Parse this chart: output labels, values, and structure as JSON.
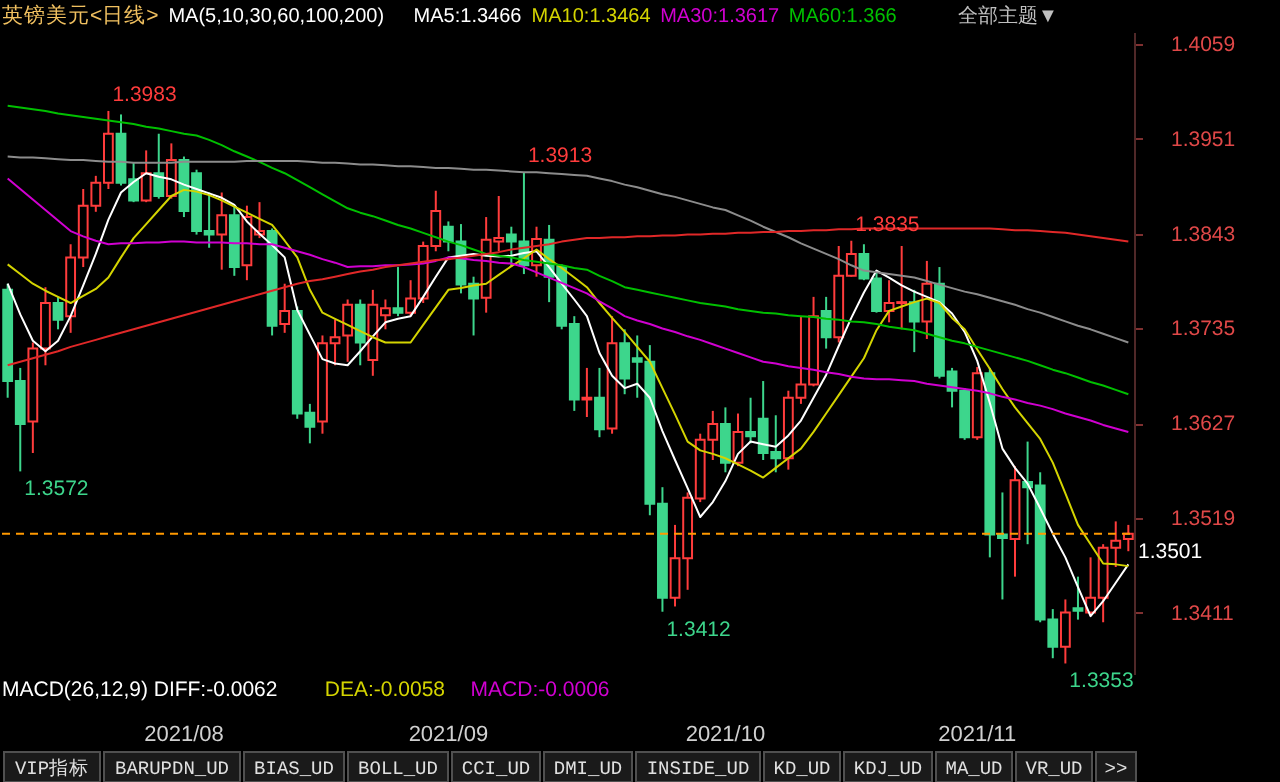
{
  "chart_data": {
    "type": "candlestick",
    "title": "英镑美元<日线>",
    "legend_title": "MA(5,10,30,60,100,200)",
    "legend": "top",
    "grid": false,
    "categories": [
      null,
      null,
      null,
      null,
      null,
      null,
      null,
      null,
      null,
      null,
      null,
      null,
      null,
      null,
      "2021/08",
      null,
      null,
      null,
      null,
      null,
      null,
      null,
      null,
      null,
      null,
      null,
      null,
      null,
      null,
      null,
      null,
      null,
      null,
      null,
      null,
      "2021/09",
      null,
      null,
      null,
      null,
      null,
      null,
      null,
      null,
      null,
      null,
      null,
      null,
      null,
      null,
      null,
      null,
      null,
      null,
      null,
      null,
      null,
      "2021/10",
      null,
      null,
      null,
      null,
      null,
      null,
      null,
      null,
      null,
      null,
      null,
      null,
      null,
      null,
      null,
      null,
      null,
      null,
      null,
      "2021/11",
      null,
      null,
      null,
      null,
      null,
      null,
      null,
      null,
      null,
      null,
      null,
      null
    ],
    "ohlc": [
      [
        1.3779,
        1.3786,
        1.3656,
        1.3675
      ],
      [
        1.3675,
        1.369,
        1.3572,
        1.3626
      ],
      [
        1.3629,
        1.3719,
        1.3593,
        1.3712
      ],
      [
        1.3712,
        1.3782,
        1.3693,
        1.3764
      ],
      [
        1.3764,
        1.3771,
        1.3734,
        1.3745
      ],
      [
        1.3749,
        1.3831,
        1.373,
        1.3816
      ],
      [
        1.3816,
        1.3894,
        1.3805,
        1.3875
      ],
      [
        1.3875,
        1.3909,
        1.3868,
        1.3901
      ],
      [
        1.3901,
        1.3983,
        1.3894,
        1.3957
      ],
      [
        1.3957,
        1.3979,
        1.3898,
        1.3901
      ],
      [
        1.3905,
        1.3924,
        1.3879,
        1.3881
      ],
      [
        1.3881,
        1.3938,
        1.3879,
        1.3912
      ],
      [
        1.3912,
        1.3957,
        1.3883,
        1.3886
      ],
      [
        1.3886,
        1.3946,
        1.3883,
        1.3927
      ],
      [
        1.3927,
        1.3931,
        1.3862,
        1.3869
      ],
      [
        1.3912,
        1.3916,
        1.3842,
        1.3846
      ],
      [
        1.3846,
        1.389,
        1.3827,
        1.3842
      ],
      [
        1.3842,
        1.389,
        1.3802,
        1.3864
      ],
      [
        1.3864,
        1.3875,
        1.3795,
        1.3805
      ],
      [
        1.3807,
        1.3875,
        1.379,
        1.3862
      ],
      [
        1.3842,
        1.3879,
        1.3838,
        1.3846
      ],
      [
        1.3846,
        1.3849,
        1.3727,
        1.3738
      ],
      [
        1.374,
        1.3786,
        1.373,
        1.3755
      ],
      [
        1.3755,
        1.376,
        1.3632,
        1.3638
      ],
      [
        1.3639,
        1.3649,
        1.3604,
        1.3623
      ],
      [
        1.3629,
        1.3727,
        1.3615,
        1.3718
      ],
      [
        1.3718,
        1.3745,
        1.3693,
        1.3725
      ],
      [
        1.3727,
        1.3768,
        1.3697,
        1.3762
      ],
      [
        1.3762,
        1.3768,
        1.3693,
        1.3719
      ],
      [
        1.3699,
        1.3779,
        1.3681,
        1.3762
      ],
      [
        1.375,
        1.3768,
        1.3734,
        1.3758
      ],
      [
        1.3758,
        1.3805,
        1.3749,
        1.3753
      ],
      [
        1.3753,
        1.379,
        1.3749,
        1.3769
      ],
      [
        1.3769,
        1.3834,
        1.3764,
        1.3829
      ],
      [
        1.3829,
        1.3892,
        1.3823,
        1.3869
      ],
      [
        1.3851,
        1.3857,
        1.3823,
        1.3834
      ],
      [
        1.3834,
        1.3854,
        1.3775,
        1.3785
      ],
      [
        1.3786,
        1.3794,
        1.3727,
        1.3769
      ],
      [
        1.377,
        1.3862,
        1.3753,
        1.3836
      ],
      [
        1.3834,
        1.3886,
        1.3823,
        1.3838
      ],
      [
        1.3842,
        1.3851,
        1.3805,
        1.3834
      ],
      [
        1.3834,
        1.3913,
        1.3797,
        1.3807
      ],
      [
        1.3807,
        1.3851,
        1.3794,
        1.3837
      ],
      [
        1.3836,
        1.3853,
        1.3765,
        1.3794
      ],
      [
        1.3805,
        1.3808,
        1.3734,
        1.3738
      ],
      [
        1.374,
        1.3749,
        1.3641,
        1.3654
      ],
      [
        1.3654,
        1.369,
        1.3634,
        1.3656
      ],
      [
        1.3656,
        1.369,
        1.3611,
        1.362
      ],
      [
        1.3621,
        1.3749,
        1.3615,
        1.3718
      ],
      [
        1.3718,
        1.3734,
        1.366,
        1.3678
      ],
      [
        1.3701,
        1.3727,
        1.3656,
        1.3697
      ],
      [
        1.3697,
        1.3716,
        1.3522,
        1.3535
      ],
      [
        1.3535,
        1.3554,
        1.3412,
        1.3428
      ],
      [
        1.3428,
        1.3511,
        1.3418,
        1.3473
      ],
      [
        1.3473,
        1.3548,
        1.3437,
        1.3542
      ],
      [
        1.3541,
        1.3615,
        1.3537,
        1.3608
      ],
      [
        1.3608,
        1.3641,
        1.3585,
        1.3626
      ],
      [
        1.3626,
        1.3645,
        1.3571,
        1.3582
      ],
      [
        1.3582,
        1.3638,
        1.3578,
        1.3617
      ],
      [
        1.3617,
        1.3656,
        1.3604,
        1.3612
      ],
      [
        1.3632,
        1.3675,
        1.3585,
        1.3593
      ],
      [
        1.3594,
        1.3636,
        1.3571,
        1.3587
      ],
      [
        1.3587,
        1.3664,
        1.3574,
        1.3656
      ],
      [
        1.3656,
        1.3749,
        1.3649,
        1.3671
      ],
      [
        1.3671,
        1.3771,
        1.3669,
        1.3749
      ],
      [
        1.3755,
        1.3771,
        1.3712,
        1.3725
      ],
      [
        1.3725,
        1.3829,
        1.3719,
        1.3795
      ],
      [
        1.3795,
        1.3835,
        1.3794,
        1.382
      ],
      [
        1.382,
        1.3831,
        1.379,
        1.3792
      ],
      [
        1.3792,
        1.3801,
        1.3753,
        1.3755
      ],
      [
        1.3755,
        1.379,
        1.3742,
        1.3764
      ],
      [
        1.3764,
        1.3829,
        1.3734,
        1.3765
      ],
      [
        1.3765,
        1.3779,
        1.3708,
        1.3743
      ],
      [
        1.3743,
        1.3812,
        1.3723,
        1.3786
      ],
      [
        1.3786,
        1.3805,
        1.3678,
        1.3681
      ],
      [
        1.3686,
        1.369,
        1.3645,
        1.3664
      ],
      [
        1.3664,
        1.3667,
        1.3608,
        1.3611
      ],
      [
        1.3611,
        1.3691,
        1.3608,
        1.3684
      ],
      [
        1.3684,
        1.369,
        1.3474,
        1.35
      ],
      [
        1.35,
        1.3548,
        1.3426,
        1.3496
      ],
      [
        1.3495,
        1.3578,
        1.3452,
        1.3562
      ],
      [
        1.356,
        1.3606,
        1.3489,
        1.3554
      ],
      [
        1.3556,
        1.3571,
        1.34,
        1.3403
      ],
      [
        1.3403,
        1.3415,
        1.3359,
        1.3372
      ],
      [
        1.3372,
        1.3426,
        1.3353,
        1.3411
      ],
      [
        1.3416,
        1.3452,
        1.3403,
        1.3413
      ],
      [
        1.3411,
        1.3474,
        1.3407,
        1.3428
      ],
      [
        1.3428,
        1.3489,
        1.34,
        1.3485
      ],
      [
        1.3485,
        1.3515,
        1.3463,
        1.3493
      ],
      [
        1.3495,
        1.3511,
        1.3481,
        1.3501
      ]
    ],
    "colors": [
      "#3dd68c",
      "#3dd68c",
      "#ff3c3c",
      "#ff3c3c",
      "#3dd68c",
      "#ff3c3c",
      "#ff3c3c",
      "#ff3c3c",
      "#ff3c3c",
      "#3dd68c",
      "#3dd68c",
      "#ff3c3c",
      "#3dd68c",
      "#ff3c3c",
      "#3dd68c",
      "#3dd68c",
      "#3dd68c",
      "#ff3c3c",
      "#3dd68c",
      "#ff3c3c",
      "#ff3c3c",
      "#3dd68c",
      "#ff3c3c",
      "#3dd68c",
      "#3dd68c",
      "#ff3c3c",
      "#ff3c3c",
      "#ff3c3c",
      "#3dd68c",
      "#ff3c3c",
      "#ff3c3c",
      "#3dd68c",
      "#ff3c3c",
      "#ff3c3c",
      "#ff3c3c",
      "#3dd68c",
      "#3dd68c",
      "#3dd68c",
      "#ff3c3c",
      "#ff3c3c",
      "#3dd68c",
      "#3dd68c",
      "#ff3c3c",
      "#3dd68c",
      "#3dd68c",
      "#3dd68c",
      "#ff3c3c",
      "#3dd68c",
      "#ff3c3c",
      "#3dd68c",
      "#3dd68c",
      "#3dd68c",
      "#3dd68c",
      "#ff3c3c",
      "#ff3c3c",
      "#ff3c3c",
      "#ff3c3c",
      "#3dd68c",
      "#ff3c3c",
      "#3dd68c",
      "#3dd68c",
      "#3dd68c",
      "#ff3c3c",
      "#ff3c3c",
      "#ff3c3c",
      "#3dd68c",
      "#ff3c3c",
      "#ff3c3c",
      "#3dd68c",
      "#3dd68c",
      "#ff3c3c",
      "#ff3c3c",
      "#3dd68c",
      "#ff3c3c",
      "#3dd68c",
      "#3dd68c",
      "#3dd68c",
      "#ff3c3c",
      "#3dd68c",
      "#3dd68c",
      "#ff3c3c",
      "#3dd68c",
      "#3dd68c",
      "#3dd68c",
      "#ff3c3c",
      "#3dd68c",
      "#ff3c3c",
      "#ff3c3c",
      "#ff3c3c",
      "#ff3c3c"
    ],
    "series": [
      {
        "name": "MA5:1.3466",
        "type": "line",
        "color": "#ffffff",
        "values": [
          1.3786,
          1.3751,
          1.3721,
          1.3709,
          1.3721,
          1.3749,
          1.3784,
          1.382,
          1.3859,
          1.389,
          1.3902,
          1.3912,
          1.3908,
          1.3905,
          1.3899,
          1.3894,
          1.3889,
          1.3884,
          1.3876,
          1.3857,
          1.3843,
          1.383,
          1.3816,
          1.3756,
          1.3728,
          1.37,
          1.3695,
          1.3693,
          1.3709,
          1.3726,
          1.3742,
          1.3746,
          1.3749,
          1.3771,
          1.3794,
          1.3816,
          1.3818,
          1.382,
          1.3818,
          1.3817,
          1.3818,
          1.3821,
          1.3823,
          1.3805,
          1.3786,
          1.3768,
          1.3749,
          1.3707,
          1.3681,
          1.3667,
          1.3672,
          1.3656,
          1.3618,
          1.3585,
          1.3553,
          1.352,
          1.3537,
          1.3561,
          1.3592,
          1.3606,
          1.3603,
          1.36,
          1.3613,
          1.363,
          1.3656,
          1.3682,
          1.3715,
          1.3747,
          1.3776,
          1.3801,
          1.3793,
          1.3784,
          1.3777,
          1.3771,
          1.3765,
          1.3752,
          1.3731,
          1.3698,
          1.365,
          1.3598,
          1.3576,
          1.3558,
          1.353,
          1.3501,
          1.3474,
          1.344,
          1.3407,
          1.3424,
          1.3445,
          1.3466
        ]
      },
      {
        "name": "MA10:1.3464",
        "type": "line",
        "color": "#d4d400",
        "values": [
          1.3808,
          1.3797,
          1.3786,
          1.3778,
          1.3771,
          1.3764,
          1.3772,
          1.378,
          1.3793,
          1.3816,
          1.3838,
          1.3854,
          1.387,
          1.3886,
          1.3893,
          1.3891,
          1.3887,
          1.3881,
          1.3874,
          1.3867,
          1.386,
          1.3853,
          1.3835,
          1.3816,
          1.3779,
          1.3753,
          1.3746,
          1.3739,
          1.3732,
          1.3725,
          1.3719,
          1.3719,
          1.3719,
          1.3739,
          1.3759,
          1.3779,
          1.3781,
          1.3784,
          1.3786,
          1.3796,
          1.3806,
          1.3815,
          1.3825,
          1.3814,
          1.3804,
          1.3793,
          1.3782,
          1.3764,
          1.3747,
          1.3731,
          1.3714,
          1.3697,
          1.3667,
          1.3637,
          1.3606,
          1.3596,
          1.3592,
          1.3587,
          1.358,
          1.3573,
          1.3565,
          1.3576,
          1.3587,
          1.3598,
          1.3617,
          1.3638,
          1.3659,
          1.368,
          1.3701,
          1.3733,
          1.3755,
          1.376,
          1.3765,
          1.3769,
          1.3764,
          1.3747,
          1.3734,
          1.3711,
          1.3689,
          1.3666,
          1.3645,
          1.3627,
          1.3609,
          1.3582,
          1.3547,
          1.3511,
          1.3489,
          1.3467,
          1.3466,
          1.3464
        ]
      },
      {
        "name": "MA30:1.3617",
        "type": "line",
        "color": "#d000d0",
        "values": [
          1.3906,
          1.3894,
          1.3882,
          1.387,
          1.3858,
          1.3846,
          1.384,
          1.3835,
          1.3831,
          1.3832,
          1.3832,
          1.3833,
          1.3833,
          1.3834,
          1.3834,
          1.3833,
          1.3833,
          1.3833,
          1.3832,
          1.3832,
          1.3831,
          1.3831,
          1.3827,
          1.3823,
          1.3819,
          1.3814,
          1.381,
          1.3805,
          1.3806,
          1.3806,
          1.3807,
          1.3807,
          1.3808,
          1.3809,
          1.3812,
          1.3816,
          1.3815,
          1.3813,
          1.3812,
          1.381,
          1.3809,
          1.3805,
          1.3799,
          1.3793,
          1.3787,
          1.3781,
          1.3775,
          1.3766,
          1.3758,
          1.3749,
          1.3744,
          1.374,
          1.3735,
          1.3731,
          1.3726,
          1.3722,
          1.3717,
          1.3712,
          1.3707,
          1.3702,
          1.3697,
          1.3695,
          1.3692,
          1.369,
          1.3688,
          1.3685,
          1.3683,
          1.368,
          1.3678,
          1.3677,
          1.3677,
          1.3676,
          1.3675,
          1.3672,
          1.367,
          1.3668,
          1.3666,
          1.3664,
          1.3661,
          1.3657,
          1.3654,
          1.365,
          1.3647,
          1.3643,
          1.3638,
          1.3634,
          1.363,
          1.3625,
          1.3621,
          1.3617
        ]
      },
      {
        "name": "MA60:1.366",
        "type": "line",
        "color": "#00c000",
        "values": [
          1.3989,
          1.3987,
          1.3985,
          1.3983,
          1.398,
          1.3978,
          1.3976,
          1.3974,
          1.3972,
          1.397,
          1.3968,
          1.3965,
          1.3963,
          1.396,
          1.3957,
          1.3955,
          1.395,
          1.3944,
          1.3937,
          1.3931,
          1.3925,
          1.3918,
          1.3912,
          1.3904,
          1.3896,
          1.3888,
          1.388,
          1.3872,
          1.3867,
          1.3863,
          1.3858,
          1.3853,
          1.3849,
          1.3844,
          1.3839,
          1.3834,
          1.383,
          1.3825,
          1.382,
          1.3818,
          1.3816,
          1.3813,
          1.3811,
          1.3809,
          1.3807,
          1.3804,
          1.3802,
          1.3795,
          1.3789,
          1.3782,
          1.3779,
          1.3776,
          1.3773,
          1.377,
          1.3767,
          1.3764,
          1.3762,
          1.376,
          1.3757,
          1.3755,
          1.3753,
          1.3752,
          1.375,
          1.3749,
          1.3748,
          1.3746,
          1.3745,
          1.3743,
          1.3742,
          1.374,
          1.3737,
          1.3735,
          1.3733,
          1.3729,
          1.3725,
          1.3721,
          1.3718,
          1.3714,
          1.371,
          1.3706,
          1.3702,
          1.3698,
          1.3693,
          1.3688,
          1.3684,
          1.3679,
          1.3674,
          1.367,
          1.3665,
          1.366
        ]
      },
      {
        "type": "line",
        "color": "#8c8c8c",
        "values": [
          1.3931,
          1.393,
          1.393,
          1.3929,
          1.3928,
          1.3927,
          1.3927,
          1.3926,
          1.3925,
          1.3925,
          1.3924,
          1.3924,
          1.3924,
          1.3924,
          1.3925,
          1.3925,
          1.3925,
          1.3925,
          1.3925,
          1.3926,
          1.3926,
          1.3926,
          1.3926,
          1.3926,
          1.3925,
          1.3924,
          1.3924,
          1.3923,
          1.3922,
          1.3922,
          1.3921,
          1.392,
          1.392,
          1.3919,
          1.3918,
          1.3918,
          1.3917,
          1.3916,
          1.3916,
          1.3915,
          1.3914,
          1.3913,
          1.3913,
          1.3912,
          1.3911,
          1.391,
          1.3909,
          1.3906,
          1.3903,
          1.3899,
          1.3896,
          1.3892,
          1.3888,
          1.3885,
          1.3881,
          1.3877,
          1.3873,
          1.387,
          1.3864,
          1.3858,
          1.3851,
          1.3845,
          1.3839,
          1.3832,
          1.3826,
          1.382,
          1.3814,
          1.3807,
          1.3801,
          1.3799,
          1.3797,
          1.3795,
          1.3793,
          1.3789,
          1.3785,
          1.3781,
          1.3777,
          1.3774,
          1.377,
          1.3766,
          1.3762,
          1.3757,
          1.3753,
          1.3748,
          1.3743,
          1.3738,
          1.3734,
          1.3729,
          1.3724,
          1.3719
        ]
      },
      {
        "type": "line",
        "color": "#e02828",
        "values": [
          1.3693,
          1.3697,
          1.3701,
          1.3705,
          1.3709,
          1.3714,
          1.3718,
          1.3722,
          1.3726,
          1.373,
          1.3734,
          1.3738,
          1.3742,
          1.3746,
          1.375,
          1.3754,
          1.3758,
          1.3762,
          1.3766,
          1.377,
          1.3774,
          1.3778,
          1.3782,
          1.3786,
          1.3789,
          1.3791,
          1.3794,
          1.3797,
          1.38,
          1.3802,
          1.3805,
          1.3807,
          1.3809,
          1.3811,
          1.3813,
          1.3814,
          1.3816,
          1.3818,
          1.382,
          1.3822,
          1.3825,
          1.3827,
          1.3829,
          1.3831,
          1.3834,
          1.3836,
          1.3838,
          1.3838,
          1.3839,
          1.3839,
          1.384,
          1.384,
          1.3841,
          1.3841,
          1.3842,
          1.3842,
          1.3843,
          1.3843,
          1.3844,
          1.3844,
          1.3845,
          1.3845,
          1.3846,
          1.3846,
          1.3847,
          1.3847,
          1.3848,
          1.3848,
          1.3849,
          1.3849,
          1.3849,
          1.3849,
          1.3849,
          1.3849,
          1.3849,
          1.3849,
          1.3849,
          1.3849,
          1.3849,
          1.3848,
          1.3847,
          1.3847,
          1.3846,
          1.3845,
          1.3844,
          1.3842,
          1.384,
          1.3838,
          1.3836,
          1.3834
        ]
      }
    ],
    "ylim": [
      1.3341,
      1.4073
    ],
    "yticks": [
      1.4059,
      1.3951,
      1.3843,
      1.3735,
      1.3627,
      1.3519,
      1.3411
    ],
    "ref_lines": [
      {
        "axis": "y",
        "value": 1.3501,
        "label": "1.3501",
        "color": "#ff9900",
        "line_style": "dashed"
      }
    ],
    "annotations": [
      "1.3983",
      "1.3913",
      "1.3835",
      "1.3572",
      "1.3412",
      "1.3353",
      "MACD(26,12,9) DIFF:-0.0062",
      "DEA:-0.0058",
      "MACD:-0.0006",
      "全部主题▼",
      "VIP指标",
      "BARUPDN_UD",
      "BIAS_UD",
      "BOLL_UD",
      "CCI_UD",
      "DMI_UD",
      "INSIDE_UD",
      "KD_UD",
      "KDJ_UD",
      "MA_UD",
      "VR_UD",
      ">>"
    ]
  }
}
